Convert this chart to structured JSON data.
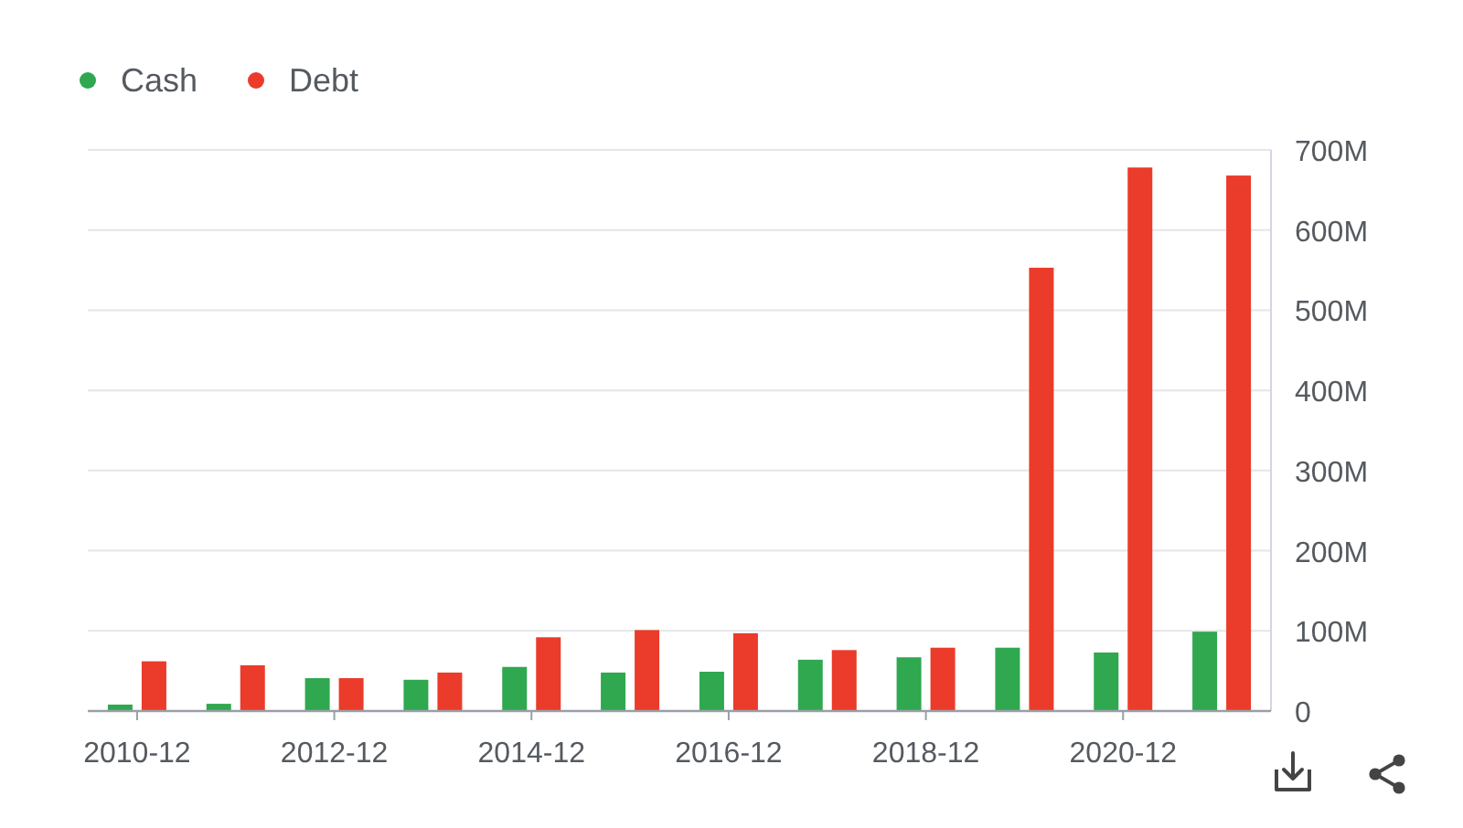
{
  "chart_data": {
    "type": "bar",
    "categories": [
      "2010-12",
      null,
      "2012-12",
      null,
      "2014-12",
      null,
      "2016-12",
      null,
      "2018-12",
      null,
      "2020-12",
      null
    ],
    "series": [
      {
        "name": "Cash",
        "color": "#2fa84f",
        "values": [
          8,
          9,
          41,
          39,
          55,
          48,
          49,
          64,
          67,
          79,
          73,
          99
        ]
      },
      {
        "name": "Debt",
        "color": "#eb3b2a",
        "values": [
          62,
          57,
          41,
          48,
          92,
          101,
          97,
          76,
          79,
          553,
          678,
          668
        ]
      }
    ],
    "ylim": [
      0,
      700
    ],
    "yticks": [
      0,
      {
        "value": 100,
        "label": "100M"
      },
      {
        "value": 200,
        "label": "200M"
      },
      {
        "value": 300,
        "label": "300M"
      },
      {
        "value": 400,
        "label": "400M"
      },
      {
        "value": 500,
        "label": "500M"
      },
      {
        "value": 600,
        "label": "600M"
      },
      {
        "value": 700,
        "label": "700M"
      }
    ],
    "grid": "y",
    "legend": "top left"
  }
}
